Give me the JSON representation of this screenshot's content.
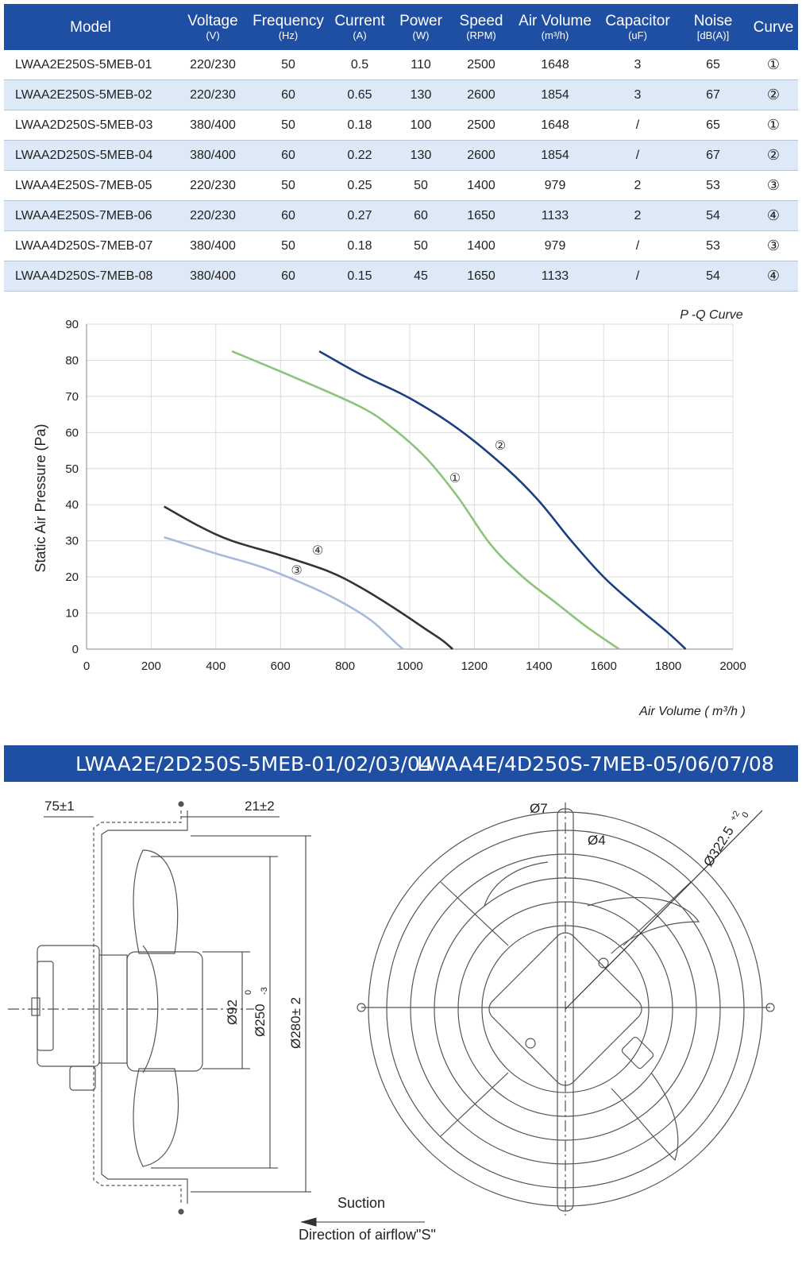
{
  "table": {
    "headers": [
      {
        "name": "Model",
        "unit": ""
      },
      {
        "name": "Voltage",
        "unit": "(V)"
      },
      {
        "name": "Frequency",
        "unit": "(Hz)"
      },
      {
        "name": "Current",
        "unit": "(A)"
      },
      {
        "name": "Power",
        "unit": "(W)"
      },
      {
        "name": "Speed",
        "unit": "(RPM)"
      },
      {
        "name": "Air Volume",
        "unit": "(m³/h)"
      },
      {
        "name": "Capacitor",
        "unit": "(uF)"
      },
      {
        "name": "Noise",
        "unit": "[dB(A)]"
      },
      {
        "name": "Curve",
        "unit": ""
      }
    ],
    "rows": [
      [
        "LWAA2E250S-5MEB-01",
        "220/230",
        "50",
        "0.5",
        "110",
        "2500",
        "1648",
        "3",
        "65",
        "①"
      ],
      [
        "LWAA2E250S-5MEB-02",
        "220/230",
        "60",
        "0.65",
        "130",
        "2600",
        "1854",
        "3",
        "67",
        "②"
      ],
      [
        "LWAA2D250S-5MEB-03",
        "380/400",
        "50",
        "0.18",
        "100",
        "2500",
        "1648",
        "/",
        "65",
        "①"
      ],
      [
        "LWAA2D250S-5MEB-04",
        "380/400",
        "60",
        "0.22",
        "130",
        "2600",
        "1854",
        "/",
        "67",
        "②"
      ],
      [
        "LWAA4E250S-7MEB-05",
        "220/230",
        "50",
        "0.25",
        "50",
        "1400",
        "979",
        "2",
        "53",
        "③"
      ],
      [
        "LWAA4E250S-7MEB-06",
        "220/230",
        "60",
        "0.27",
        "60",
        "1650",
        "1133",
        "2",
        "54",
        "④"
      ],
      [
        "LWAA4D250S-7MEB-07",
        "380/400",
        "50",
        "0.18",
        "50",
        "1400",
        "979",
        "/",
        "53",
        "③"
      ],
      [
        "LWAA4D250S-7MEB-08",
        "380/400",
        "60",
        "0.15",
        "45",
        "1650",
        "1133",
        "/",
        "54",
        "④"
      ]
    ]
  },
  "chart_data": {
    "type": "line",
    "title": "P -Q Curve",
    "xlabel": "Air Volume ( m³/h )",
    "ylabel": "Static Air Pressure  (Pa)",
    "xlim": [
      0,
      2000
    ],
    "ylim": [
      0,
      90
    ],
    "x_ticks": [
      0,
      200,
      400,
      600,
      800,
      1000,
      1200,
      1400,
      1600,
      1800,
      2000
    ],
    "y_ticks": [
      0,
      10,
      20,
      30,
      40,
      50,
      60,
      70,
      80,
      90
    ],
    "grid": true,
    "series": [
      {
        "name": "①",
        "color": "#8cc47a",
        "x": [
          450,
          650,
          850,
          950,
          1050,
          1150,
          1250,
          1350,
          1450,
          1550,
          1648
        ],
        "y": [
          82.5,
          75,
          67,
          61,
          53,
          42,
          29,
          20,
          13,
          6,
          0
        ]
      },
      {
        "name": "②",
        "color": "#1b3f82",
        "x": [
          720,
          850,
          1000,
          1150,
          1300,
          1400,
          1500,
          1600,
          1700,
          1800,
          1854
        ],
        "y": [
          82.5,
          76,
          69.5,
          61,
          50,
          41,
          30,
          20,
          12,
          4.5,
          0
        ]
      },
      {
        "name": "③",
        "color": "#a8b9da",
        "x": [
          240,
          400,
          550,
          700,
          800,
          880,
          930,
          960,
          979
        ],
        "y": [
          31,
          26.5,
          22.5,
          17,
          12.5,
          8,
          4,
          1.5,
          0
        ]
      },
      {
        "name": "④",
        "color": "#333333",
        "x": [
          240,
          350,
          450,
          600,
          750,
          850,
          950,
          1050,
          1100,
          1133
        ],
        "y": [
          39.5,
          34,
          30,
          26,
          21.5,
          17,
          11.5,
          5.5,
          2.5,
          0
        ]
      }
    ],
    "labels": [
      {
        "text": "①",
        "x": 1140,
        "y": 47.5
      },
      {
        "text": "②",
        "x": 1280,
        "y": 56.5
      },
      {
        "text": "③",
        "x": 650,
        "y": 22
      },
      {
        "text": "④",
        "x": 715,
        "y": 27.5
      }
    ]
  },
  "banner": {
    "left": "LWAA2E/2D250S-5MEB-01/02/03/04",
    "right": "LWAA4E/4D250S-7MEB-05/06/07/08"
  },
  "drawing": {
    "dim_75": "75±1",
    "dim_21": "21±2",
    "dim_92": "Ø92",
    "dim_250": "Ø250",
    "dim_250_tol_upper": "0",
    "dim_250_tol_lower": "-3",
    "dim_280": "Ø280± 2",
    "dim_7": "Ø7",
    "dim_4": "Ø4",
    "dim_322": "Ø322.5",
    "dim_322_tol_upper": "+2",
    "dim_322_tol_lower": "0",
    "suction": "Suction",
    "direction": "Direction of airflow\"S\""
  }
}
